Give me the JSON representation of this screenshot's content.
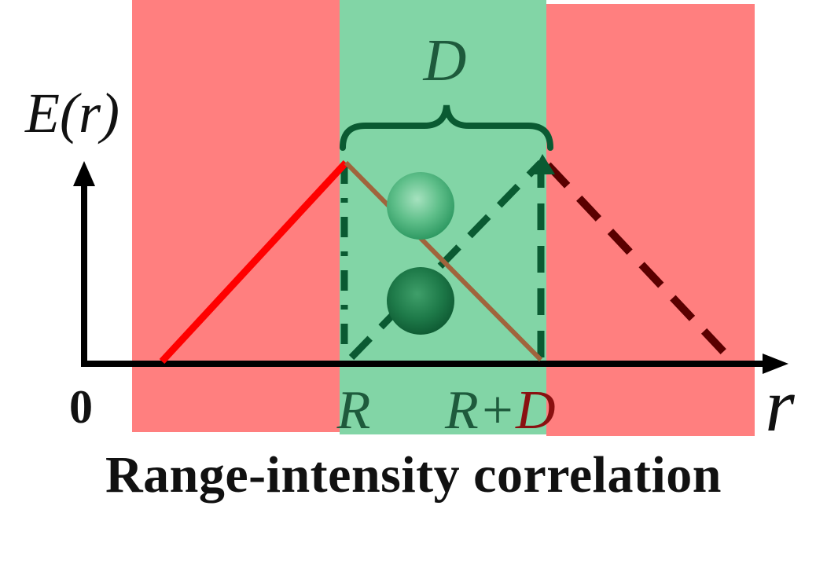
{
  "diagram": {
    "y_label": "E(r)",
    "x_label": "r",
    "origin_label": "0",
    "interval_label": "D",
    "tick_labels": {
      "r_start": "R",
      "r_end_prefix": "R+",
      "r_end_suffix": "D"
    },
    "caption": "Range-intensity correlation"
  },
  "colors": {
    "outside_region": "#ff7f7f",
    "inside_region": "#82d5a6",
    "axis": "#000000",
    "rising_line": "#ff0000",
    "falling_line": "#a0643c",
    "dashed_green": "#0a5a32",
    "dashed_dark_red": "#5a0000",
    "brace": "#0a5a32",
    "label_green": "#1e5a3c"
  }
}
